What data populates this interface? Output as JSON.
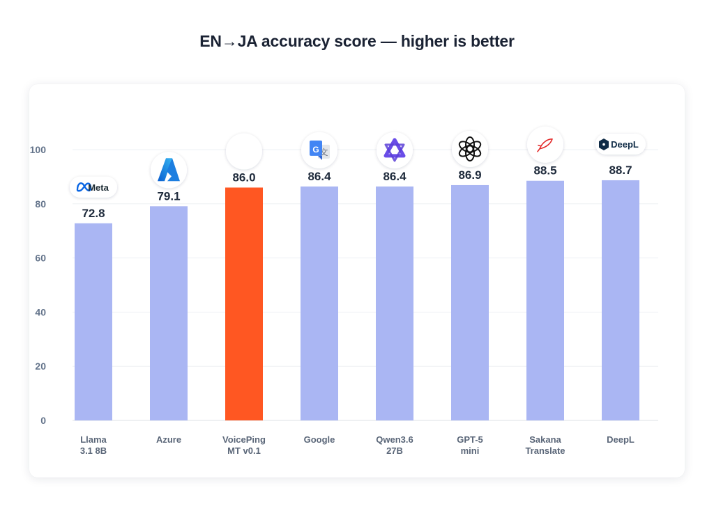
{
  "chart_data": {
    "type": "bar",
    "title": "EN→JA accuracy score — higher is better",
    "xlabel": "",
    "ylabel": "",
    "ylim": [
      0,
      100
    ],
    "yticks": [
      0,
      20,
      40,
      60,
      80,
      100
    ],
    "grid": true,
    "categories": [
      [
        "Llama",
        "3.1 8B"
      ],
      [
        "Azure"
      ],
      [
        "VoicePing",
        "MT v0.1"
      ],
      [
        "Google"
      ],
      [
        "Qwen3.6",
        "27B"
      ],
      [
        "GPT-5",
        "mini"
      ],
      [
        "Sakana",
        "Translate"
      ],
      [
        "DeepL"
      ]
    ],
    "values": [
      72.8,
      79.1,
      86.0,
      86.4,
      86.4,
      86.9,
      88.5,
      88.7
    ],
    "value_labels": [
      "72.8",
      "79.1",
      "86.0",
      "86.4",
      "86.4",
      "86.9",
      "88.5",
      "88.7"
    ],
    "logos": [
      "meta-logo",
      "azure-logo",
      "voiceping-logo",
      "google-translate-logo",
      "qwen-logo",
      "openai-logo",
      "sakana-logo",
      "deepl-logo"
    ],
    "logo_text": {
      "meta": "Meta",
      "deepl": "DeepL"
    },
    "highlight_index": 2,
    "colors": {
      "bar": "#aab6f3",
      "highlight": "#ff5722"
    }
  }
}
